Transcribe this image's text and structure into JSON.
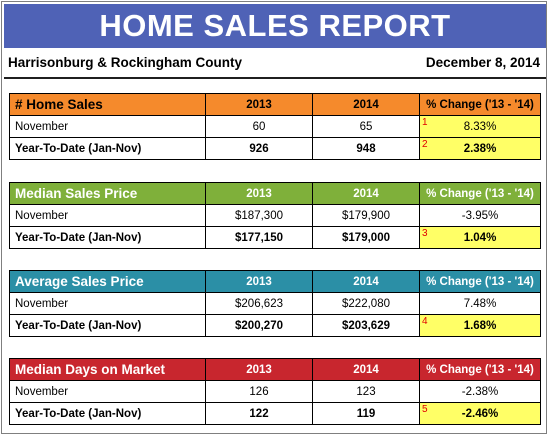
{
  "report": {
    "title": "HOME SALES REPORT",
    "region": "Harrisonburg & Rockingham County",
    "date": "December 8, 2014"
  },
  "colors": {
    "banner": "#4f62b6",
    "home_sales": "#f58a2c",
    "median_price": "#7fb03a",
    "average_price": "#2b8fa6",
    "days_on_market": "#c8262e",
    "highlight": "#ffff66"
  },
  "sections": [
    {
      "title": "# Home Sales",
      "col_2013": "2013",
      "col_2014": "2014",
      "col_change": "% Change ('13 - '14)",
      "rows": [
        {
          "label": "November",
          "v2013": "60",
          "v2014": "65",
          "change": "8.33%",
          "marker": "1"
        },
        {
          "label": "Year-To-Date (Jan-Nov)",
          "v2013": "926",
          "v2014": "948",
          "change": "2.38%",
          "marker": "2"
        }
      ]
    },
    {
      "title": "Median Sales Price",
      "col_2013": "2013",
      "col_2014": "2014",
      "col_change": "% Change ('13 - '14)",
      "rows": [
        {
          "label": "November",
          "v2013": "$187,300",
          "v2014": "$179,900",
          "change": "-3.95%",
          "marker": ""
        },
        {
          "label": "Year-To-Date (Jan-Nov)",
          "v2013": "$177,150",
          "v2014": "$179,000",
          "change": "1.04%",
          "marker": "3"
        }
      ]
    },
    {
      "title": "Average Sales Price",
      "col_2013": "2013",
      "col_2014": "2014",
      "col_change": "% Change ('13 - '14)",
      "rows": [
        {
          "label": "November",
          "v2013": "$206,623",
          "v2014": "$222,080",
          "change": "7.48%",
          "marker": ""
        },
        {
          "label": "Year-To-Date (Jan-Nov)",
          "v2013": "$200,270",
          "v2014": "$203,629",
          "change": "1.68%",
          "marker": "4"
        }
      ]
    },
    {
      "title": "Median Days on Market",
      "col_2013": "2013",
      "col_2014": "2014",
      "col_change": "% Change ('13 - '14)",
      "rows": [
        {
          "label": "November",
          "v2013": "126",
          "v2014": "123",
          "change": "-2.38%",
          "marker": ""
        },
        {
          "label": "Year-To-Date (Jan-Nov)",
          "v2013": "122",
          "v2014": "119",
          "change": "-2.46%",
          "marker": "5"
        }
      ]
    }
  ]
}
